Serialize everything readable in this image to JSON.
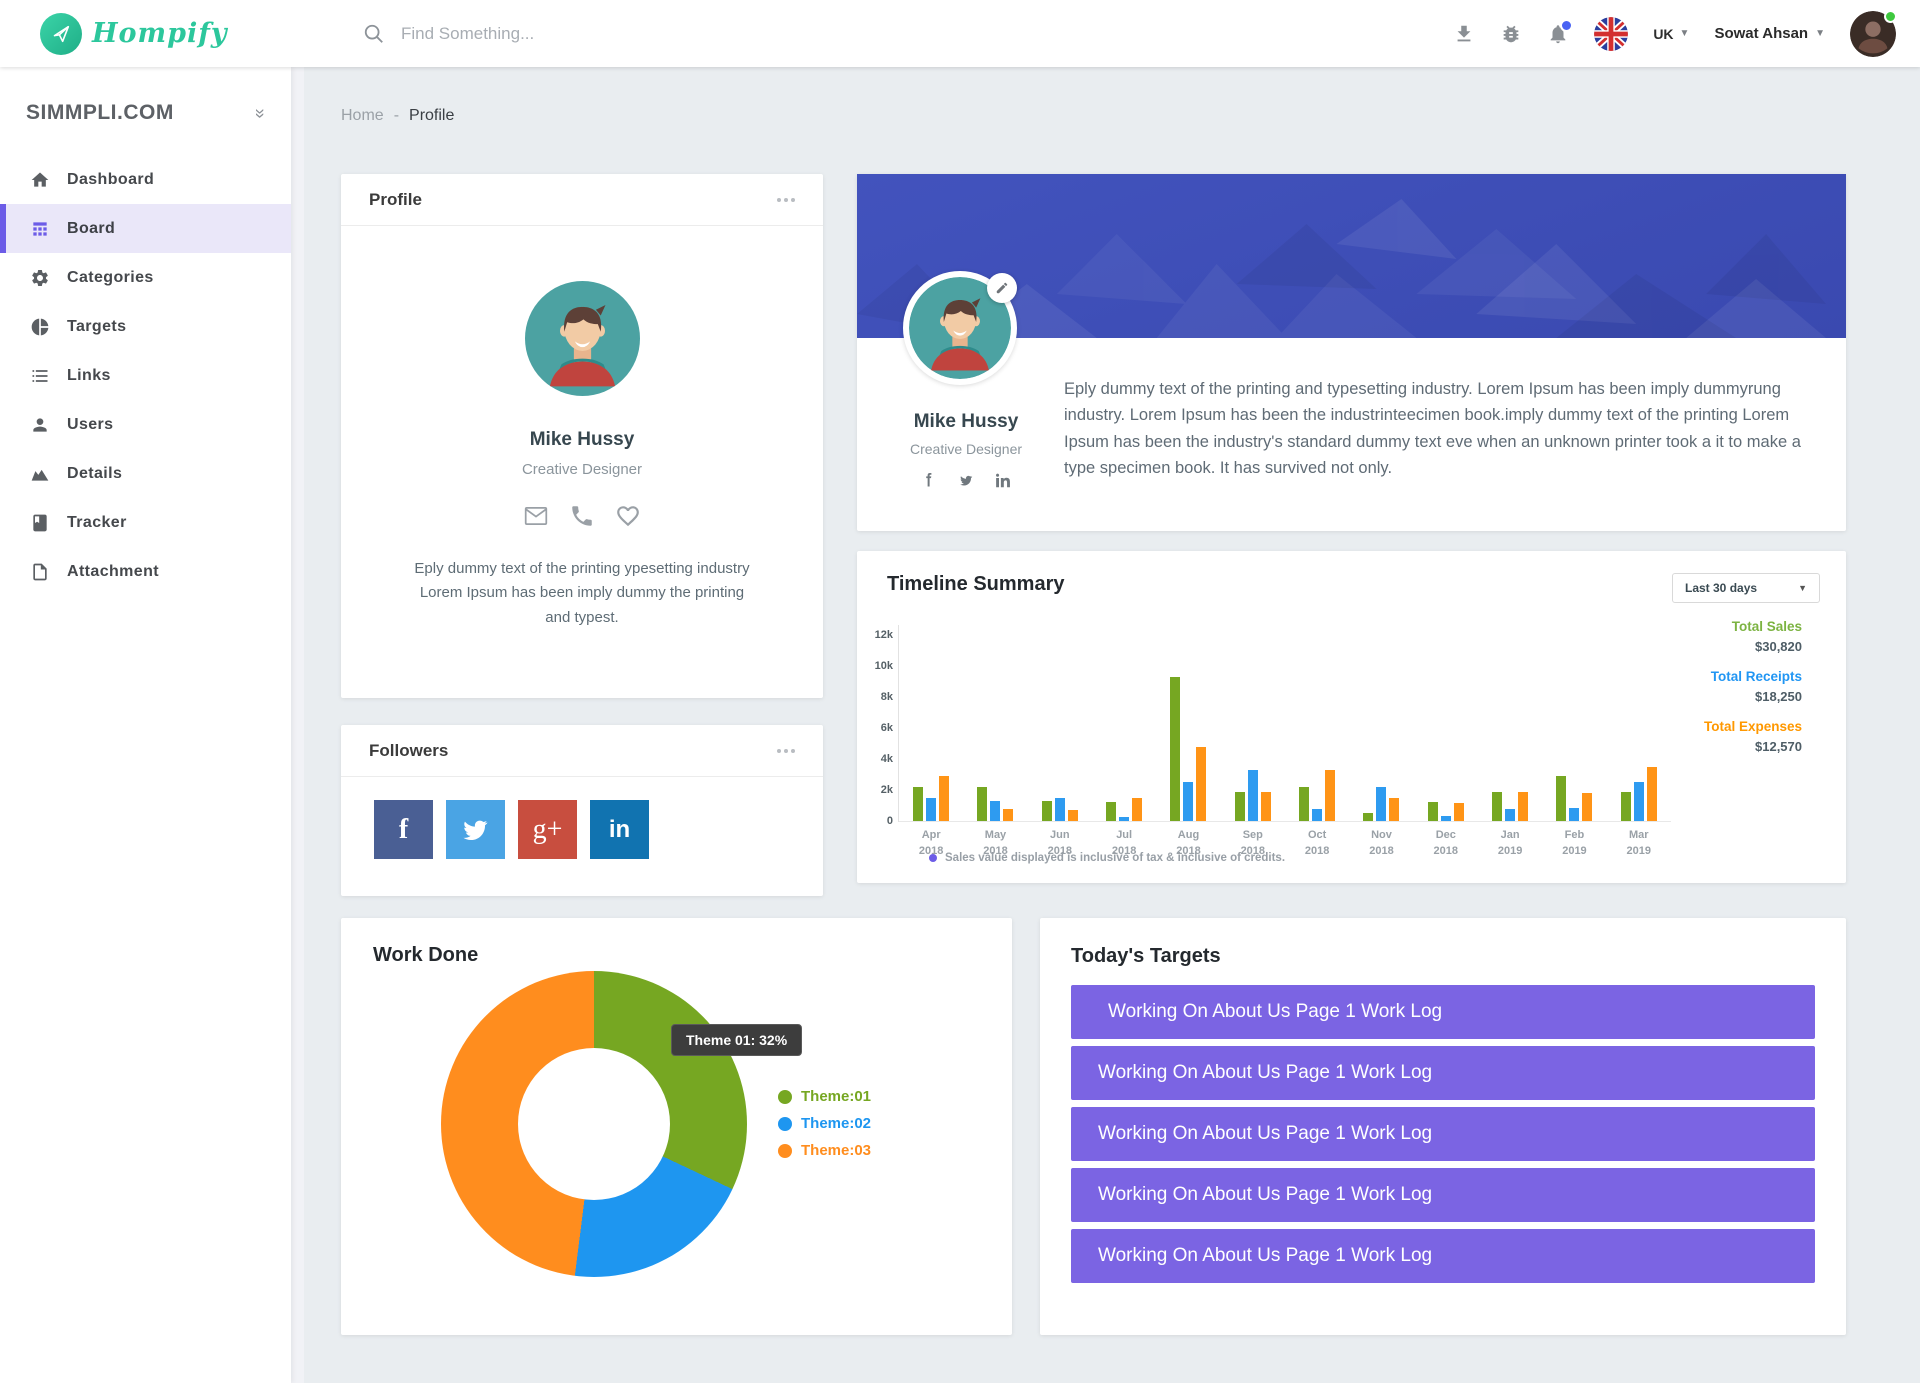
{
  "header": {
    "logo_text": "Hompify",
    "search_placeholder": "Find Something...",
    "language": "UK",
    "user_name": "Sowat Ahsan"
  },
  "sidebar": {
    "brand": "SIMMPLI.COM",
    "items": [
      {
        "label": "Dashboard",
        "icon": "home-icon",
        "active": false
      },
      {
        "label": "Board",
        "icon": "board-icon",
        "active": true
      },
      {
        "label": "Categories",
        "icon": "gear-icon",
        "active": false
      },
      {
        "label": "Targets",
        "icon": "pie-icon",
        "active": false
      },
      {
        "label": "Links",
        "icon": "list-icon",
        "active": false
      },
      {
        "label": "Users",
        "icon": "user-icon",
        "active": false
      },
      {
        "label": "Details",
        "icon": "area-chart-icon",
        "active": false
      },
      {
        "label": "Tracker",
        "icon": "book-icon",
        "active": false
      },
      {
        "label": "Attachment",
        "icon": "file-icon",
        "active": false
      }
    ]
  },
  "breadcrumb": {
    "home": "Home",
    "separator": "-",
    "current": "Profile"
  },
  "profile_card": {
    "title": "Profile",
    "name": "Mike Hussy",
    "role": "Creative Designer",
    "bio": "Eply dummy text of the printing ypesetting industry Lorem Ipsum has been imply dummy the printing and typest."
  },
  "banner_card": {
    "name": "Mike Hussy",
    "role": "Creative Designer",
    "about": "Eply dummy text of the printing and typesetting industry. Lorem Ipsum has been imply dummyrung industry. Lorem Ipsum has been the industrinteecimen book.imply dummy text of the printing Lorem Ipsum has been the industry's standard dummy text eve when an unknown printer took a it to make a type specimen book. It has survived not only."
  },
  "followers_card": {
    "title": "Followers",
    "networks": [
      {
        "name": "facebook",
        "color": "#4a5f94"
      },
      {
        "name": "twitter",
        "color": "#4aa4e4"
      },
      {
        "name": "google-plus",
        "color": "#c84e3f"
      },
      {
        "name": "linkedin",
        "color": "#1173b0"
      }
    ]
  },
  "timeline_card": {
    "title": "Timeline Summary",
    "range_label": "Last 30 days",
    "totals": [
      {
        "label": "Total Sales",
        "value": "$30,820",
        "color": "#7cb342"
      },
      {
        "label": "Total Receipts",
        "value": "$18,250",
        "color": "#2196f3"
      },
      {
        "label": "Total Expenses",
        "value": "$12,570",
        "color": "#ff9800"
      }
    ],
    "footnote": "Sales value displayed is inclusive of tax & inclusive of credits."
  },
  "work_done_card": {
    "title": "Work Done",
    "tooltip": "Theme 01: 32%",
    "legend": [
      {
        "label": "Theme:01",
        "color": "#76a722"
      },
      {
        "label": "Theme:02",
        "color": "#1e96f0"
      },
      {
        "label": "Theme:03",
        "color": "#ff8d1e"
      }
    ]
  },
  "targets_card": {
    "title": "Today's Targets",
    "items": [
      "Working On About Us Page 1 Work Log",
      "Working On About Us Page 1 Work Log",
      "Working On About Us Page 1 Work Log",
      "Working On About Us Page 1 Work Log",
      "Working On About Us Page 1 Work Log"
    ]
  },
  "chart_data": [
    {
      "type": "bar",
      "title": "Timeline Summary",
      "categories": [
        "Apr 2018",
        "May 2018",
        "Jun 2018",
        "Jul 2018",
        "Aug 2018",
        "Sep 2018",
        "Oct 2018",
        "Nov 2018",
        "Dec 2018",
        "Jan 2019",
        "Feb 2019",
        "Mar 2019"
      ],
      "series": [
        {
          "name": "Sales",
          "color": "#76a722",
          "values": [
            2200,
            2200,
            1300,
            1200,
            9300,
            1900,
            2200,
            500,
            1200,
            1900,
            2900,
            1900
          ]
        },
        {
          "name": "Receipts",
          "color": "#2e9bf0",
          "values": [
            1500,
            1300,
            1500,
            250,
            2500,
            3300,
            800,
            2200,
            350,
            800,
            850,
            2500
          ]
        },
        {
          "name": "Expenses",
          "color": "#ff9416",
          "values": [
            2900,
            800,
            700,
            1500,
            4800,
            1900,
            3300,
            1500,
            1150,
            1850,
            1800,
            3500
          ]
        }
      ],
      "ylim": [
        0,
        12000
      ],
      "yticks": [
        "12k",
        "10k",
        "8k",
        "6k",
        "4k",
        "2k",
        "0"
      ],
      "legend_position": "right",
      "grid": false
    },
    {
      "type": "pie",
      "title": "Work Done",
      "labels": [
        "Theme:01",
        "Theme:02",
        "Theme:03"
      ],
      "values": [
        32,
        20,
        48
      ],
      "colors": [
        "#76a722",
        "#1e96f0",
        "#ff8d1e"
      ],
      "tooltip": "Theme 01: 32%"
    }
  ]
}
